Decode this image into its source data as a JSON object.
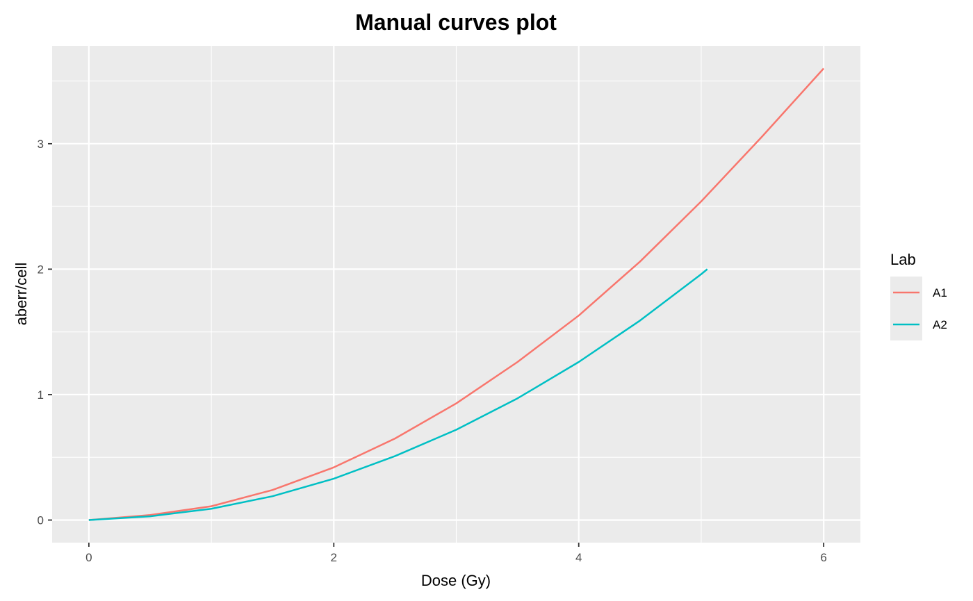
{
  "chart_data": {
    "type": "line",
    "title": "Manual curves plot",
    "xlabel": "Dose (Gy)",
    "ylabel": "aberr/cell",
    "xlim": [
      -0.3,
      6.3
    ],
    "ylim": [
      -0.18,
      3.78
    ],
    "x_ticks": [
      0,
      2,
      4,
      6
    ],
    "y_ticks": [
      0,
      1,
      2,
      3
    ],
    "x_tick_labels": [
      "0",
      "2",
      "4",
      "6"
    ],
    "y_tick_labels": [
      "0",
      "1",
      "2",
      "3"
    ],
    "grid": true,
    "legend": {
      "title": "Lab",
      "placement": "right"
    },
    "series": [
      {
        "name": "A1",
        "color": "#F8766D",
        "x": [
          0,
          0.5,
          1,
          1.5,
          2,
          2.5,
          3,
          3.5,
          4,
          4.5,
          5,
          5.5,
          6
        ],
        "y": [
          0,
          0.04,
          0.11,
          0.24,
          0.42,
          0.65,
          0.93,
          1.26,
          1.63,
          2.06,
          2.54,
          3.06,
          3.6
        ]
      },
      {
        "name": "A2",
        "color": "#00BFC4",
        "x": [
          0,
          0.5,
          1,
          1.5,
          2,
          2.5,
          3,
          3.5,
          4,
          4.5,
          5,
          5.05
        ],
        "y": [
          0,
          0.03,
          0.09,
          0.19,
          0.33,
          0.51,
          0.72,
          0.97,
          1.26,
          1.59,
          1.96,
          2.0
        ]
      }
    ]
  }
}
